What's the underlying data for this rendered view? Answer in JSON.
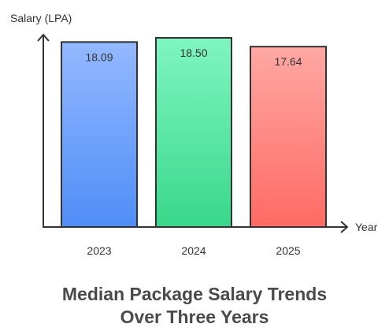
{
  "chart_data": {
    "type": "bar",
    "title_lines": [
      "Median Package Salary Trends",
      "Over Three Years"
    ],
    "ylabel": "Salary (LPA)",
    "xlabel": "Year",
    "categories": [
      "2023",
      "2024",
      "2025"
    ],
    "values": [
      18.09,
      18.5,
      17.64
    ],
    "value_labels": [
      "18.09",
      "18.50",
      "17.64"
    ],
    "colors": [
      {
        "top": "#93b8ff",
        "bottom": "#4f8ef7"
      },
      {
        "top": "#7ff5c0",
        "bottom": "#3ad88a"
      },
      {
        "top": "#ffa8a4",
        "bottom": "#ff6a63"
      }
    ],
    "grid": false,
    "legend": "none"
  }
}
